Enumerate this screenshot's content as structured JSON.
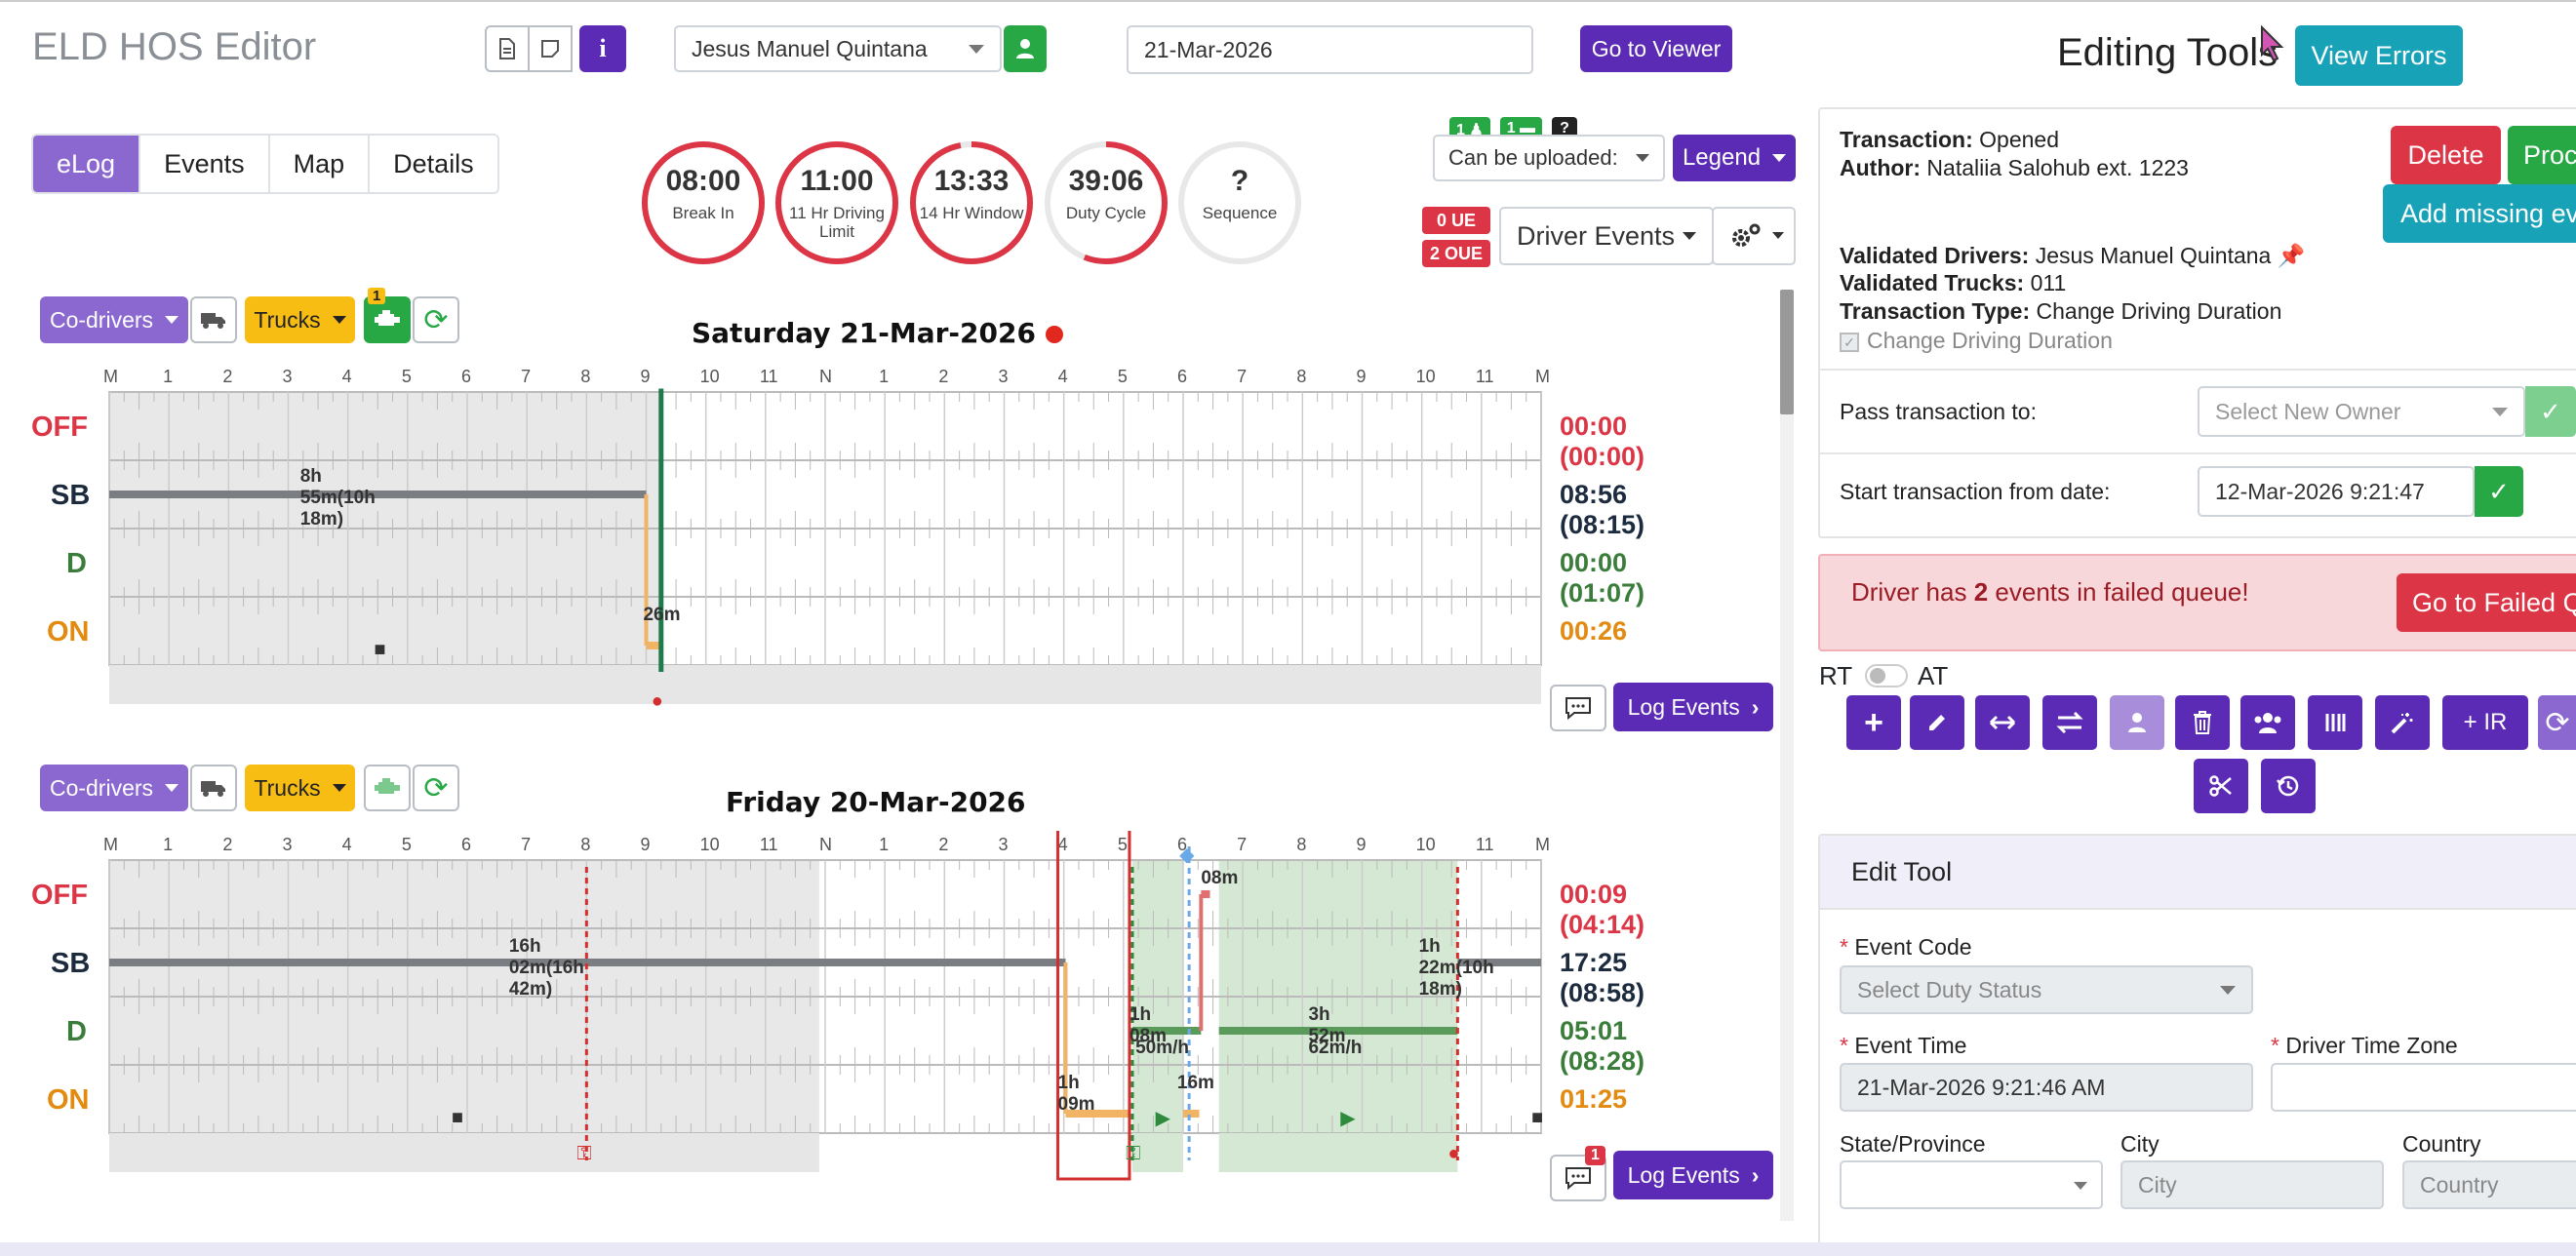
{
  "header": {
    "title": "ELD HOS Editor",
    "driver": "Jesus Manuel Quintana",
    "date": "21-Mar-2026",
    "go_viewer": "Go to Viewer",
    "editing_tools": "Editing Tools",
    "view_errors": "View Errors"
  },
  "tabs": [
    "eLog",
    "Events",
    "Map",
    "Details"
  ],
  "gauges": [
    {
      "value": "08:00",
      "label": "Break In",
      "fraction": 1.0,
      "color": "#dc3545"
    },
    {
      "value": "11:00",
      "label": "11 Hr Driving Limit",
      "fraction": 1.0,
      "color": "#dc3545"
    },
    {
      "value": "13:33",
      "label": "14 Hr Window",
      "fraction": 0.97,
      "color": "#dc3545"
    },
    {
      "value": "39:06",
      "label": "Duty Cycle",
      "fraction": 0.56,
      "color": "#dc3545"
    },
    {
      "value": "?",
      "label": "Sequence",
      "fraction": 0,
      "color": "#dc3545"
    }
  ],
  "upload": {
    "badge_drivers": "1",
    "badge_trucks": "1",
    "badge_unknown": "?",
    "select": "Can be uploaded:",
    "legend": "Legend"
  },
  "badges": {
    "ue": "0 UE",
    "oue": "2 OUE"
  },
  "driver_events": "Driver Events",
  "statuses": [
    "OFF",
    "SB",
    "D",
    "ON"
  ],
  "hour_labels": [
    "M",
    "1",
    "2",
    "3",
    "4",
    "5",
    "6",
    "7",
    "8",
    "9",
    "10",
    "11",
    "N",
    "1",
    "2",
    "3",
    "4",
    "5",
    "6",
    "7",
    "8",
    "9",
    "10",
    "11",
    "M"
  ],
  "day1": {
    "title": "Saturday 21-Mar-2026",
    "codrivers": "Co-drivers",
    "trucks": "Trucks",
    "engine_badge": "1",
    "totals": [
      "00:00 (00:00)",
      "08:56 (08:15)",
      "00:00 (01:07)",
      "00:26"
    ],
    "labels": {
      "sb": "8h 55m(10h 18m)",
      "on": "26m"
    },
    "log_events": "Log Events"
  },
  "day2": {
    "title": "Friday 20-Mar-2026",
    "codrivers": "Co-drivers",
    "trucks": "Trucks",
    "comment_badge": "1",
    "totals": [
      "00:09 (04:14)",
      "17:25 (08:58)",
      "05:01 (08:28)",
      "01:25"
    ],
    "labels": {
      "sb1": "16h 02m(16h 42m)",
      "sb2": "1h 22m(10h 18m)",
      "off": "08m",
      "d1": "1h 08m",
      "d1s": "50m/h",
      "d2": "3h 52m",
      "d2s": "62m/h",
      "on1": "1h 09m",
      "on2": "16m"
    },
    "log_events": "Log Events"
  },
  "transaction": {
    "status_k": "Transaction:",
    "status_v": "Opened",
    "author_k": "Author:",
    "author_v": "Nataliia Salohub ext. 1223",
    "delete": "Delete",
    "proceed": "Proc",
    "add_missing": "Add missing eve",
    "drivers_k": "Validated Drivers:",
    "drivers_v": "Jesus Manuel Quintana",
    "trucks_k": "Validated Trucks:",
    "trucks_v": "011",
    "type_k": "Transaction Type:",
    "type_v": "Change Driving Duration",
    "checkbox": "Change Driving Duration",
    "pass_label": "Pass transaction to:",
    "pass_placeholder": "Select New Owner",
    "start_label": "Start transaction from date:",
    "start_value": "12-Mar-2026 9:21:47"
  },
  "alert": {
    "pre": "Driver has ",
    "count": "2",
    "post": " events in failed queue!",
    "button": "Go to Failed Q"
  },
  "toggle": {
    "rt": "RT",
    "at": "AT"
  },
  "tools": {
    "ir": "+ IR"
  },
  "edit_tool": {
    "title": "Edit Tool",
    "event_code": "Event Code",
    "event_code_ph": "Select Duty Status",
    "event_time": "Event Time",
    "event_time_v": "21-Mar-2026 9:21:46 AM",
    "tz": "Driver Time Zone",
    "state": "State/Province",
    "city": "City",
    "city_ph": "City",
    "country": "Country",
    "country_ph": "Country"
  }
}
